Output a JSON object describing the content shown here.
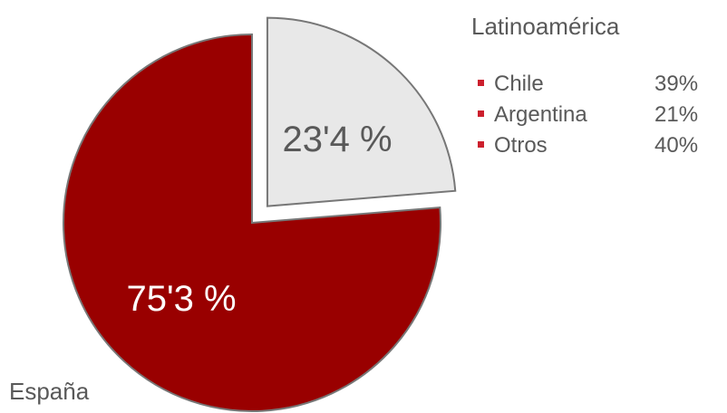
{
  "chart_data": {
    "type": "pie",
    "slices": [
      {
        "name": "España",
        "label": "75'3 %",
        "value": 75.3,
        "color": "#990000",
        "label_color": "#ffffff",
        "exploded": false
      },
      {
        "name": "Latinoamérica",
        "label": "23'4 %",
        "value": 23.4,
        "color": "#e8e8e8",
        "label_color": "#595959",
        "exploded": true
      }
    ],
    "breakdown": {
      "title": "Latinoamérica",
      "bullet_color": "#cc1f2d",
      "items": [
        {
          "label": "Chile",
          "value": "39%"
        },
        {
          "label": "Argentina",
          "value": "21%"
        },
        {
          "label": "Otros",
          "value": "40%"
        }
      ]
    },
    "outline_color": "#777777"
  }
}
